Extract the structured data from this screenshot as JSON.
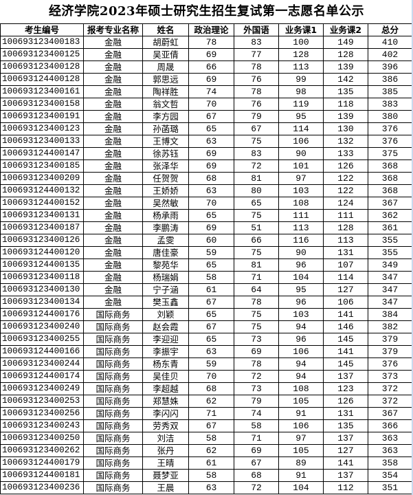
{
  "title": "经济学院2023年硕士研究生招生复试第一志愿名单公示",
  "columns": [
    "考生编号",
    "报考专业名称",
    "姓名",
    "政治理论",
    "外国语",
    "业务课1",
    "业务课2",
    "总分"
  ],
  "rows": [
    [
      "100693123400183",
      "金融",
      "胡蔚虹",
      "78",
      "83",
      "100",
      "149",
      "410"
    ],
    [
      "100693123400125",
      "金融",
      "吴亚倩",
      "69",
      "77",
      "128",
      "128",
      "402"
    ],
    [
      "100693123400128",
      "金融",
      "周晟",
      "66",
      "78",
      "113",
      "139",
      "396"
    ],
    [
      "100693124400128",
      "金融",
      "郭思远",
      "69",
      "76",
      "99",
      "142",
      "386"
    ],
    [
      "100693123400161",
      "金融",
      "陶祥胜",
      "74",
      "78",
      "98",
      "135",
      "385"
    ],
    [
      "100693123400158",
      "金融",
      "翁文哲",
      "70",
      "76",
      "119",
      "118",
      "383"
    ],
    [
      "100693123400191",
      "金融",
      "李方园",
      "67",
      "79",
      "95",
      "139",
      "380"
    ],
    [
      "100693123400123",
      "金融",
      "孙菡璐",
      "65",
      "67",
      "114",
      "130",
      "376"
    ],
    [
      "100693123400133",
      "金融",
      "王博文",
      "63",
      "75",
      "106",
      "132",
      "376"
    ],
    [
      "100693124400147",
      "金融",
      "徐苏钰",
      "69",
      "83",
      "90",
      "133",
      "375"
    ],
    [
      "100693123400185",
      "金融",
      "张泽华",
      "69",
      "72",
      "101",
      "126",
      "368"
    ],
    [
      "100693123400209",
      "金融",
      "任贺贺",
      "68",
      "81",
      "97",
      "122",
      "368"
    ],
    [
      "100693124400132",
      "金融",
      "王娇娇",
      "63",
      "80",
      "103",
      "122",
      "368"
    ],
    [
      "100693124400152",
      "金融",
      "吴然敏",
      "70",
      "65",
      "108",
      "124",
      "367"
    ],
    [
      "100693123400131",
      "金融",
      "杨承雨",
      "65",
      "75",
      "111",
      "111",
      "362"
    ],
    [
      "100693123400187",
      "金融",
      "李鹏涛",
      "69",
      "51",
      "113",
      "128",
      "361"
    ],
    [
      "100693123400126",
      "金融",
      "孟雯",
      "60",
      "66",
      "116",
      "113",
      "355"
    ],
    [
      "100693124400120",
      "金融",
      "唐佳豪",
      "59",
      "75",
      "90",
      "131",
      "355"
    ],
    [
      "100693124400135",
      "金融",
      "黎苑华",
      "65",
      "81",
      "96",
      "107",
      "349"
    ],
    [
      "100693123400118",
      "金融",
      "杨瑞娟",
      "58",
      "71",
      "104",
      "114",
      "347"
    ],
    [
      "100693123400130",
      "金融",
      "宁子涵",
      "61",
      "64",
      "95",
      "127",
      "347"
    ],
    [
      "100693123400134",
      "金融",
      "樊玉鑫",
      "67",
      "78",
      "96",
      "106",
      "347"
    ],
    [
      "100693124400176",
      "国际商务",
      "刘颖",
      "65",
      "75",
      "103",
      "141",
      "384"
    ],
    [
      "100693123400240",
      "国际商务",
      "赵会霞",
      "67",
      "75",
      "94",
      "146",
      "382"
    ],
    [
      "100693123400255",
      "国际商务",
      "李迎迎",
      "65",
      "73",
      "96",
      "145",
      "379"
    ],
    [
      "100693124400166",
      "国际商务",
      "李振宇",
      "63",
      "69",
      "106",
      "141",
      "379"
    ],
    [
      "100693123400244",
      "国际商务",
      "杨东青",
      "59",
      "78",
      "94",
      "145",
      "376"
    ],
    [
      "100693124400174",
      "国际商务",
      "吴佳贝",
      "70",
      "72",
      "94",
      "137",
      "373"
    ],
    [
      "100693123400249",
      "国际商务",
      "李超越",
      "68",
      "73",
      "108",
      "123",
      "372"
    ],
    [
      "100693123400253",
      "国际商务",
      "郑慧姝",
      "62",
      "79",
      "105",
      "126",
      "372"
    ],
    [
      "100693123400256",
      "国际商务",
      "李闪闪",
      "71",
      "74",
      "91",
      "131",
      "367"
    ],
    [
      "100693123400243",
      "国际商务",
      "劳秀双",
      "67",
      "58",
      "106",
      "135",
      "366"
    ],
    [
      "100693123400250",
      "国际商务",
      "刘洁",
      "58",
      "71",
      "97",
      "137",
      "363"
    ],
    [
      "100693123400262",
      "国际商务",
      "张丹",
      "62",
      "69",
      "105",
      "127",
      "363"
    ],
    [
      "100693124400179",
      "国际商务",
      "王晴",
      "61",
      "67",
      "89",
      "141",
      "358"
    ],
    [
      "100693124400181",
      "国际商务",
      "聂梦亚",
      "58",
      "68",
      "91",
      "137",
      "354"
    ],
    [
      "100693123400236",
      "国际商务",
      "王晨",
      "63",
      "72",
      "104",
      "112",
      "351"
    ]
  ]
}
